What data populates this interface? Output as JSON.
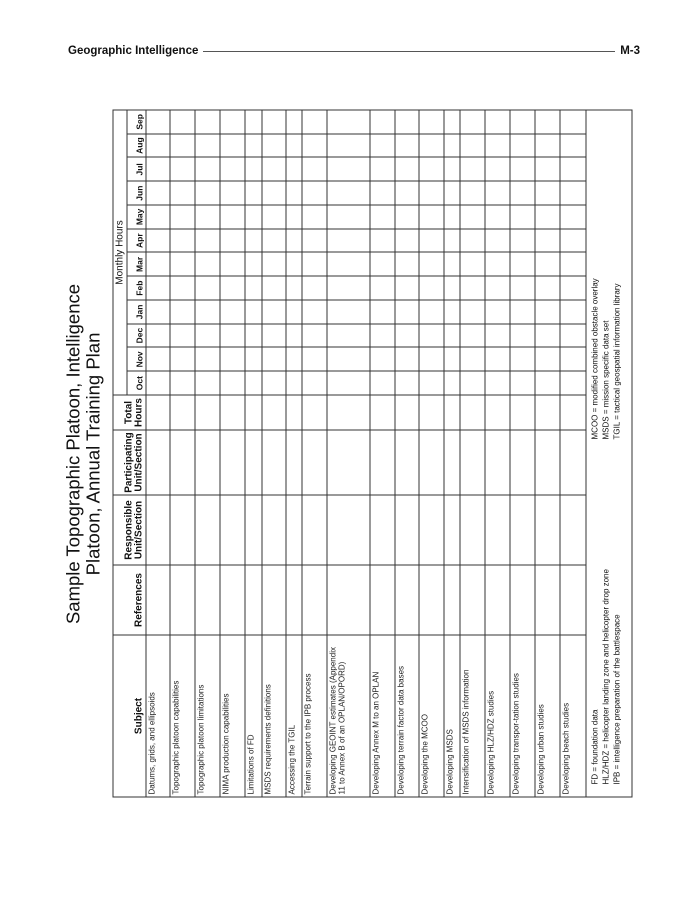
{
  "running_head": {
    "section": "Geographic Intelligence",
    "page": "M-3"
  },
  "title": {
    "line1": "Sample Topographic Platoon, Intelligence",
    "line2": "Platoon, Annual Training Plan"
  },
  "table": {
    "headers": {
      "subject": "Subject",
      "references": "References",
      "responsible": "Responsible Unit/Section",
      "participating": "Participating Unit/Section",
      "total": "Total Hours",
      "monthly": "Monthly Hours"
    },
    "months": [
      "Oct",
      "Nov",
      "Dec",
      "Jan",
      "Feb",
      "Mar",
      "Apr",
      "May",
      "Jun",
      "Jul",
      "Aug",
      "Sep"
    ],
    "rows": [
      "Datums, grids, and ellipsoids",
      "Topographic platoon capabilities",
      "Topographic platoon limitations",
      "NIMA production capabilities",
      "Limitations of FD",
      "MSDS requirements definitions",
      "Accessing the TGIL",
      "Terrain support to the IPB process",
      "Developing GEOINT estimates (Appendix 11 to Annex B of an OPLAN/OPORD)",
      "Developing Annex M to an OPLAN",
      "Developing terrain factor data bases",
      "Developing the MCOO",
      "Developing MSDS",
      "Intensification of MSDS information",
      "Developing HLZ/HDZ studies",
      "Developing transpor-tation studies",
      "Developing urban studies",
      "Developing beach studies"
    ],
    "footnotes_left": [
      "FD = foundation data",
      "HLZ/HDZ = helicopter landing zone and helicopter drop zone",
      "IPB = intelligence preparation of the battlespace"
    ],
    "footnotes_right": [
      "MCOO = modified combined obstacle overlay",
      "MSDS = mission specific data set",
      "TGIL = tactical geospatial information library"
    ]
  }
}
